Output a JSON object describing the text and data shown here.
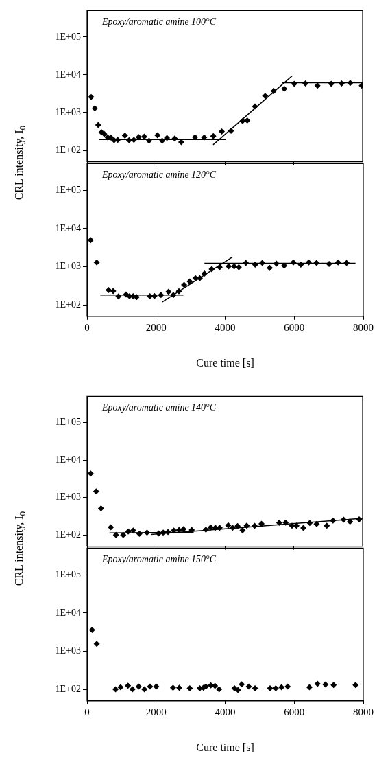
{
  "chart_data": [
    {
      "type": "scatter",
      "title": "Epoxy/aromatic amine 100°C",
      "ylabel": "CRL intensity, I$_{0}$",
      "xlim": [
        0,
        8000
      ],
      "xticks": [
        0,
        2000,
        4000,
        6000,
        8000
      ],
      "ylim": [
        50,
        500000
      ],
      "yticks": [
        {
          "value": 100,
          "label": "1E+02"
        },
        {
          "value": 1000,
          "label": "1E+03"
        },
        {
          "value": 10000,
          "label": "1E+04"
        },
        {
          "value": 100000,
          "label": "1E+05"
        }
      ],
      "log": "y",
      "tick_labels": "y",
      "marker": "diamond",
      "series": [
        {
          "type": "scatter",
          "color": "#000000",
          "x": [
            120,
            225,
            325,
            420,
            500,
            600,
            690,
            785,
            890,
            1100,
            1220,
            1360,
            1500,
            1660,
            1800,
            2045,
            2180,
            2320,
            2545,
            2735,
            3135,
            3400,
            3665,
            3910,
            4180,
            4515,
            4650,
            4875,
            5170,
            5420,
            5725,
            6015,
            6340,
            6690,
            7090,
            7390,
            7640,
            7975
          ],
          "values": [
            2600,
            1300,
            470,
            300,
            270,
            220,
            220,
            186,
            190,
            245,
            186,
            190,
            225,
            230,
            180,
            250,
            180,
            213,
            207,
            166,
            225,
            220,
            238,
            316,
            330,
            600,
            620,
            1460,
            2750,
            3720,
            4270,
            5770,
            5940,
            5170,
            5770,
            5940,
            6100,
            5170
          ]
        },
        {
          "type": "line",
          "color": "#000000",
          "marker": "none",
          "x": [
            350,
            4040
          ],
          "values": [
            194,
            194
          ]
        },
        {
          "type": "line",
          "color": "#000000",
          "marker": "none",
          "x": [
            3660,
            5950
          ],
          "values": [
            141,
            9330
          ]
        },
        {
          "type": "line",
          "color": "#000000",
          "marker": "none",
          "x": [
            5665,
            8000
          ],
          "values": [
            6170,
            6170
          ]
        }
      ]
    },
    {
      "type": "scatter",
      "title": "Epoxy/aromatic amine 120°C",
      "xlabel": "Cure time [s]",
      "xlim": [
        0,
        8000
      ],
      "xticks": [
        0,
        2000,
        4000,
        6000,
        8000
      ],
      "ylim": [
        50,
        500000
      ],
      "yticks": [
        {
          "value": 100,
          "label": "1E+02"
        },
        {
          "value": 1000,
          "label": "1E+03"
        },
        {
          "value": 10000,
          "label": "1E+04"
        },
        {
          "value": 100000,
          "label": "1E+05"
        }
      ],
      "log": "y",
      "marker": "diamond",
      "series": [
        {
          "type": "scatter",
          "color": "#000000",
          "x": [
            106,
            280,
            625,
            757,
            910,
            1130,
            1230,
            1335,
            1435,
            1820,
            1950,
            2140,
            2360,
            2500,
            2660,
            2810,
            2975,
            3140,
            3265,
            3400,
            3610,
            3840,
            4100,
            4260,
            4395,
            4600,
            4870,
            5075,
            5290,
            5485,
            5710,
            5975,
            6190,
            6420,
            6645,
            7010,
            7270,
            7515
          ],
          "values": [
            4960,
            1300,
            243,
            230,
            166,
            187,
            168,
            168,
            159,
            168,
            170,
            180,
            221,
            180,
            227,
            332,
            408,
            500,
            500,
            658,
            865,
            964,
            1020,
            1020,
            964,
            1250,
            1135,
            1250,
            925,
            1200,
            1060,
            1300,
            1135,
            1300,
            1250,
            1180,
            1300,
            1250
          ]
        },
        {
          "type": "line",
          "color": "#000000",
          "marker": "none",
          "x": [
            385,
            2790
          ],
          "values": [
            180,
            180
          ]
        },
        {
          "type": "line",
          "color": "#000000",
          "marker": "none",
          "x": [
            2180,
            4210
          ],
          "values": [
            119,
            1790
          ]
        },
        {
          "type": "line",
          "color": "#000000",
          "marker": "none",
          "x": [
            3400,
            7775
          ],
          "values": [
            1230,
            1230
          ]
        }
      ]
    },
    {
      "type": "scatter",
      "title": "Epoxy/aromatic amine 140°C",
      "ylabel": "CRL intensity, I$_{0}$",
      "xlim": [
        0,
        8000
      ],
      "xticks": [
        0,
        2000,
        4000,
        6000,
        8000
      ],
      "ylim": [
        50,
        500000
      ],
      "yticks": [
        {
          "value": 100,
          "label": "1E+02"
        },
        {
          "value": 1000,
          "label": "1E+03"
        },
        {
          "value": 10000,
          "label": "1E+04"
        },
        {
          "value": 100000,
          "label": "1E+05"
        }
      ],
      "log": "y",
      "tick_labels": "y",
      "marker": "diamond",
      "series": [
        {
          "type": "scatter",
          "color": "#000000",
          "x": [
            106,
            265,
            405,
            690,
            840,
            1050,
            1195,
            1340,
            1520,
            1740,
            2080,
            2210,
            2350,
            2520,
            2670,
            2800,
            3040,
            3450,
            3590,
            3725,
            3850,
            4100,
            4225,
            4370,
            4515,
            4635,
            4865,
            5065,
            5580,
            5765,
            5950,
            6080,
            6280,
            6465,
            6665,
            6960,
            7140,
            7450,
            7635,
            7900
          ],
          "values": [
            4370,
            1450,
            510,
            161,
            100,
            100,
            123,
            131,
            107,
            115,
            110,
            115,
            119,
            131,
            135,
            143,
            135,
            139,
            159,
            155,
            155,
            180,
            155,
            172,
            133,
            177,
            175,
            198,
            211,
            214,
            177,
            177,
            153,
            209,
            195,
            177,
            243,
            256,
            226,
            260
          ]
        },
        {
          "type": "line",
          "color": "#000000",
          "marker": "none",
          "x": [
            650,
            3095
          ],
          "values": [
            113,
            118
          ]
        },
        {
          "type": "line",
          "color": "#000000",
          "marker": "none",
          "x": [
            1850,
            8000
          ],
          "values": [
            103,
            278
          ]
        }
      ]
    },
    {
      "type": "scatter",
      "title": "Epoxy/aromatic amine 150°C",
      "xlabel": "Cure time [s]",
      "xlim": [
        0,
        8000
      ],
      "xticks": [
        0,
        2000,
        4000,
        6000,
        8000
      ],
      "ylim": [
        50,
        500000
      ],
      "yticks": [
        {
          "value": 100,
          "label": "1E+02"
        },
        {
          "value": 1000,
          "label": "1E+03"
        },
        {
          "value": 10000,
          "label": "1E+04"
        },
        {
          "value": 100000,
          "label": "1E+05"
        }
      ],
      "log": "y",
      "marker": "diamond",
      "series": [
        {
          "type": "scatter",
          "color": "#000000",
          "x": [
            145,
            280,
            825,
            970,
            1185,
            1315,
            1495,
            1660,
            1825,
            2005,
            2490,
            2670,
            2975,
            3265,
            3370,
            3440,
            3585,
            3705,
            3825,
            4270,
            4370,
            4480,
            4685,
            4865,
            5300,
            5465,
            5630,
            5810,
            6440,
            6675,
            6905,
            7140,
            7775
          ],
          "values": [
            3610,
            1560,
            100,
            113,
            125,
            100,
            118,
            100,
            118,
            118,
            110,
            110,
            107,
            107,
            110,
            118,
            127,
            123,
            100,
            107,
            96,
            136,
            118,
            107,
            107,
            107,
            113,
            118,
            113,
            140,
            134,
            130,
            130
          ]
        }
      ]
    }
  ]
}
